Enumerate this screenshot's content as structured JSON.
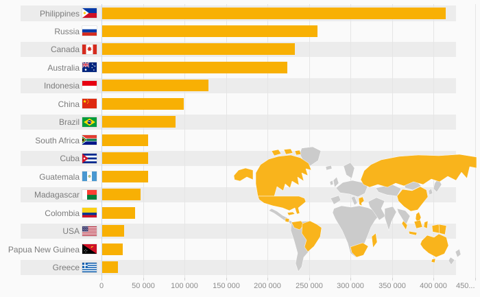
{
  "chart_data": {
    "type": "bar",
    "orientation": "horizontal",
    "title": "",
    "xlabel": "",
    "ylabel": "",
    "categories": [
      "Philippines",
      "Russia",
      "Canada",
      "Australia",
      "Indonesia",
      "China",
      "Brazil",
      "South Africa",
      "Cuba",
      "Guatemala",
      "Madagascar",
      "Colombia",
      "USA",
      "Papua New Guinea",
      "Greece"
    ],
    "values": [
      414000,
      259000,
      232000,
      223000,
      128000,
      98500,
      88000,
      55500,
      55500,
      55500,
      46500,
      40000,
      26500,
      25000,
      19000
    ],
    "flags": [
      "ph",
      "ru",
      "ca",
      "au",
      "id",
      "cn",
      "br",
      "za",
      "cu",
      "gt",
      "mg",
      "co",
      "us",
      "pg",
      "gr"
    ],
    "xlim": [
      0,
      450000
    ],
    "xticks": [
      "0",
      "50 000",
      "100 000",
      "150 000",
      "200 000",
      "250 000",
      "300 000",
      "350 000",
      "400 000",
      "450..."
    ],
    "xtick_values": [
      0,
      50000,
      100000,
      150000,
      200000,
      250000,
      300000,
      350000,
      400000,
      450000
    ],
    "grid": "vertical",
    "legend": "none",
    "row_striping": true,
    "map_inset": {
      "position": "bottom-right",
      "highlighted_countries": [
        "Philippines",
        "Russia",
        "Canada",
        "Australia",
        "Indonesia",
        "China",
        "Brazil",
        "South Africa",
        "Cuba",
        "Guatemala",
        "Madagascar",
        "Colombia",
        "USA",
        "Papua New Guinea",
        "Greece"
      ]
    }
  },
  "colors": {
    "bar": "#f8b004",
    "map_highlight": "#f9b41c",
    "map_land": "#cbcbcb",
    "stripe": "#ececec",
    "background": "#fafafa",
    "grid_line": "#e5e5e5",
    "zero_line": "#c9d8e9",
    "label": "#7b7b7b",
    "tick_label": "#8b8b8b"
  }
}
